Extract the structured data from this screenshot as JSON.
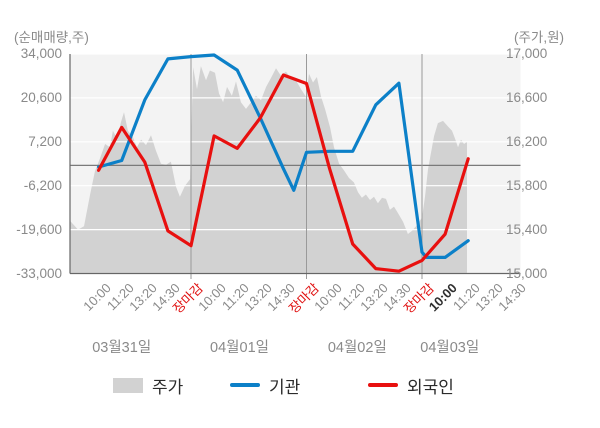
{
  "units": {
    "left": "(순매매량,주)",
    "right": "(주가,원)"
  },
  "legend": [
    {
      "label": "주가",
      "type": "area"
    },
    {
      "label": "기관",
      "type": "line"
    },
    {
      "label": "외국인",
      "type": "line"
    }
  ],
  "colors": {
    "plot_bg": "#f3f3f3",
    "area": "#d2d2d2",
    "blue": "#0c80c8",
    "red": "#e8100f",
    "grid": "#ffffff",
    "zero_line": "#7a7a7a",
    "day_line": "#9a9a9a",
    "axis": "#666666",
    "tick_text": "#8a8a8a",
    "close_label": "#e01010",
    "current_label": "#2f2f2f"
  },
  "chart_data": {
    "type": "mixed",
    "left_axis": {
      "label": "(순매매량,주)",
      "ticks": [
        34000,
        20600,
        7200,
        -6200,
        -19600,
        -33000
      ],
      "tick_labels": [
        "34,000",
        "20,600",
        "7,200",
        "-6,200",
        "-19,600",
        "-33,000"
      ],
      "range": [
        -33000,
        34000
      ]
    },
    "right_axis": {
      "label": "(주가,원)",
      "ticks": [
        17000,
        16600,
        16200,
        15800,
        15400,
        15000
      ],
      "tick_labels": [
        "17,000",
        "16,600",
        "16,200",
        "15,800",
        "15,400",
        "15,000"
      ],
      "range": [
        15000,
        17000
      ]
    },
    "x_axis": {
      "tick_labels": [
        {
          "t": 0,
          "label": "10:00",
          "style": "normal"
        },
        {
          "t": 1,
          "label": "11:20",
          "style": "normal"
        },
        {
          "t": 2,
          "label": "13:20",
          "style": "normal"
        },
        {
          "t": 3,
          "label": "14:30",
          "style": "normal"
        },
        {
          "t": 4,
          "label": "장마감",
          "style": "close"
        },
        {
          "t": 5,
          "label": "10:00",
          "style": "normal"
        },
        {
          "t": 6,
          "label": "11:20",
          "style": "normal"
        },
        {
          "t": 7,
          "label": "13:20",
          "style": "normal"
        },
        {
          "t": 8,
          "label": "14:30",
          "style": "normal"
        },
        {
          "t": 9,
          "label": "장마감",
          "style": "close"
        },
        {
          "t": 10,
          "label": "10:00",
          "style": "normal"
        },
        {
          "t": 11,
          "label": "11:20",
          "style": "normal"
        },
        {
          "t": 12,
          "label": "13:20",
          "style": "normal"
        },
        {
          "t": 13,
          "label": "14:30",
          "style": "normal"
        },
        {
          "t": 14,
          "label": "장마감",
          "style": "close"
        },
        {
          "t": 15,
          "label": "10:00",
          "style": "current"
        },
        {
          "t": 16,
          "label": "11:20",
          "style": "normal"
        },
        {
          "t": 17,
          "label": "13:20",
          "style": "normal"
        },
        {
          "t": 18,
          "label": "14:30",
          "style": "normal"
        }
      ],
      "day_separator_t": [
        4,
        9,
        14
      ],
      "day_labels": [
        {
          "label": "03월31일",
          "t": 1.0
        },
        {
          "label": "04월01일",
          "t": 6.1
        },
        {
          "label": "04월02일",
          "t": 11.2
        },
        {
          "label": "04월03일",
          "t": 15.2
        }
      ]
    },
    "series": [
      {
        "name": "주가",
        "type": "area",
        "axis": "right",
        "color": "#d2d2d2",
        "points": [
          [
            -1.24,
            15480
          ],
          [
            -0.89,
            15400
          ],
          [
            -0.63,
            15430
          ],
          [
            -0.37,
            15720
          ],
          [
            -0.16,
            15930
          ],
          [
            0.06,
            16050
          ],
          [
            0.28,
            16180
          ],
          [
            0.49,
            16150
          ],
          [
            0.62,
            16300
          ],
          [
            0.8,
            16230
          ],
          [
            0.97,
            16380
          ],
          [
            1.1,
            16470
          ],
          [
            1.27,
            16300
          ],
          [
            1.49,
            16240
          ],
          [
            1.66,
            16150
          ],
          [
            1.84,
            16220
          ],
          [
            2.05,
            16170
          ],
          [
            2.27,
            16260
          ],
          [
            2.48,
            16120
          ],
          [
            2.7,
            16000
          ],
          [
            2.92,
            15990
          ],
          [
            3.13,
            16020
          ],
          [
            3.35,
            15790
          ],
          [
            3.52,
            15700
          ],
          [
            3.74,
            15800
          ],
          [
            3.96,
            15860
          ],
          [
            4.09,
            16880
          ],
          [
            4.26,
            16680
          ],
          [
            4.43,
            16890
          ],
          [
            4.65,
            16760
          ],
          [
            4.82,
            16850
          ],
          [
            5.04,
            16830
          ],
          [
            5.21,
            16640
          ],
          [
            5.39,
            16560
          ],
          [
            5.56,
            16700
          ],
          [
            5.77,
            16620
          ],
          [
            5.95,
            16750
          ],
          [
            6.16,
            16560
          ],
          [
            6.38,
            16500
          ],
          [
            6.6,
            16560
          ],
          [
            6.81,
            16620
          ],
          [
            7.03,
            16580
          ],
          [
            7.25,
            16700
          ],
          [
            7.46,
            16780
          ],
          [
            7.68,
            16870
          ],
          [
            7.9,
            16800
          ],
          [
            8.11,
            16840
          ],
          [
            8.33,
            16780
          ],
          [
            8.54,
            16760
          ],
          [
            8.76,
            16680
          ],
          [
            8.98,
            16610
          ],
          [
            9.11,
            16820
          ],
          [
            9.28,
            16740
          ],
          [
            9.45,
            16790
          ],
          [
            9.63,
            16610
          ],
          [
            9.8,
            16500
          ],
          [
            10.02,
            16330
          ],
          [
            10.19,
            16150
          ],
          [
            10.41,
            16000
          ],
          [
            10.62,
            15940
          ],
          [
            10.84,
            15870
          ],
          [
            11.05,
            15830
          ],
          [
            11.23,
            15740
          ],
          [
            11.4,
            15690
          ],
          [
            11.57,
            15720
          ],
          [
            11.75,
            15670
          ],
          [
            11.92,
            15700
          ],
          [
            12.09,
            15640
          ],
          [
            12.27,
            15690
          ],
          [
            12.44,
            15680
          ],
          [
            12.61,
            15580
          ],
          [
            12.79,
            15610
          ],
          [
            12.96,
            15550
          ],
          [
            13.18,
            15470
          ],
          [
            13.39,
            15360
          ],
          [
            13.57,
            15390
          ],
          [
            13.78,
            15440
          ],
          [
            14.0,
            15510
          ],
          [
            14.13,
            15700
          ],
          [
            14.26,
            15950
          ],
          [
            14.39,
            16100
          ],
          [
            14.52,
            16250
          ],
          [
            14.69,
            16370
          ],
          [
            14.91,
            16390
          ],
          [
            15.12,
            16340
          ],
          [
            15.3,
            16300
          ],
          [
            15.43,
            16230
          ],
          [
            15.56,
            16150
          ],
          [
            15.69,
            16220
          ],
          [
            15.82,
            16180
          ],
          [
            15.95,
            16200
          ]
        ]
      },
      {
        "name": "기관",
        "type": "line",
        "axis": "left",
        "color": "#0c80c8",
        "points": [
          [
            0,
            -500
          ],
          [
            1,
            1500
          ],
          [
            2,
            20000
          ],
          [
            3,
            32500
          ],
          [
            4,
            33200
          ],
          [
            5,
            33700
          ],
          [
            6,
            29100
          ],
          [
            7,
            14500
          ],
          [
            8,
            -1000
          ],
          [
            8.45,
            -7600
          ],
          [
            9,
            4000
          ],
          [
            10,
            4300
          ],
          [
            11,
            4300
          ],
          [
            12,
            18500
          ],
          [
            13,
            25100
          ],
          [
            14,
            -26500
          ],
          [
            14.2,
            -28100
          ],
          [
            15,
            -28100
          ],
          [
            16,
            -23000
          ]
        ]
      },
      {
        "name": "외국인",
        "type": "line",
        "axis": "left",
        "color": "#e8100f",
        "points": [
          [
            0,
            -1500
          ],
          [
            1,
            11600
          ],
          [
            2,
            1000
          ],
          [
            3,
            -20000
          ],
          [
            4,
            -24500
          ],
          [
            5,
            9000
          ],
          [
            6,
            5200
          ],
          [
            7,
            14500
          ],
          [
            8,
            27600
          ],
          [
            9,
            25000
          ],
          [
            10,
            -1000
          ],
          [
            11,
            -24000
          ],
          [
            12,
            -31500
          ],
          [
            13,
            -32300
          ],
          [
            14,
            -29000
          ],
          [
            15,
            -21000
          ],
          [
            16,
            2000
          ]
        ]
      }
    ]
  }
}
